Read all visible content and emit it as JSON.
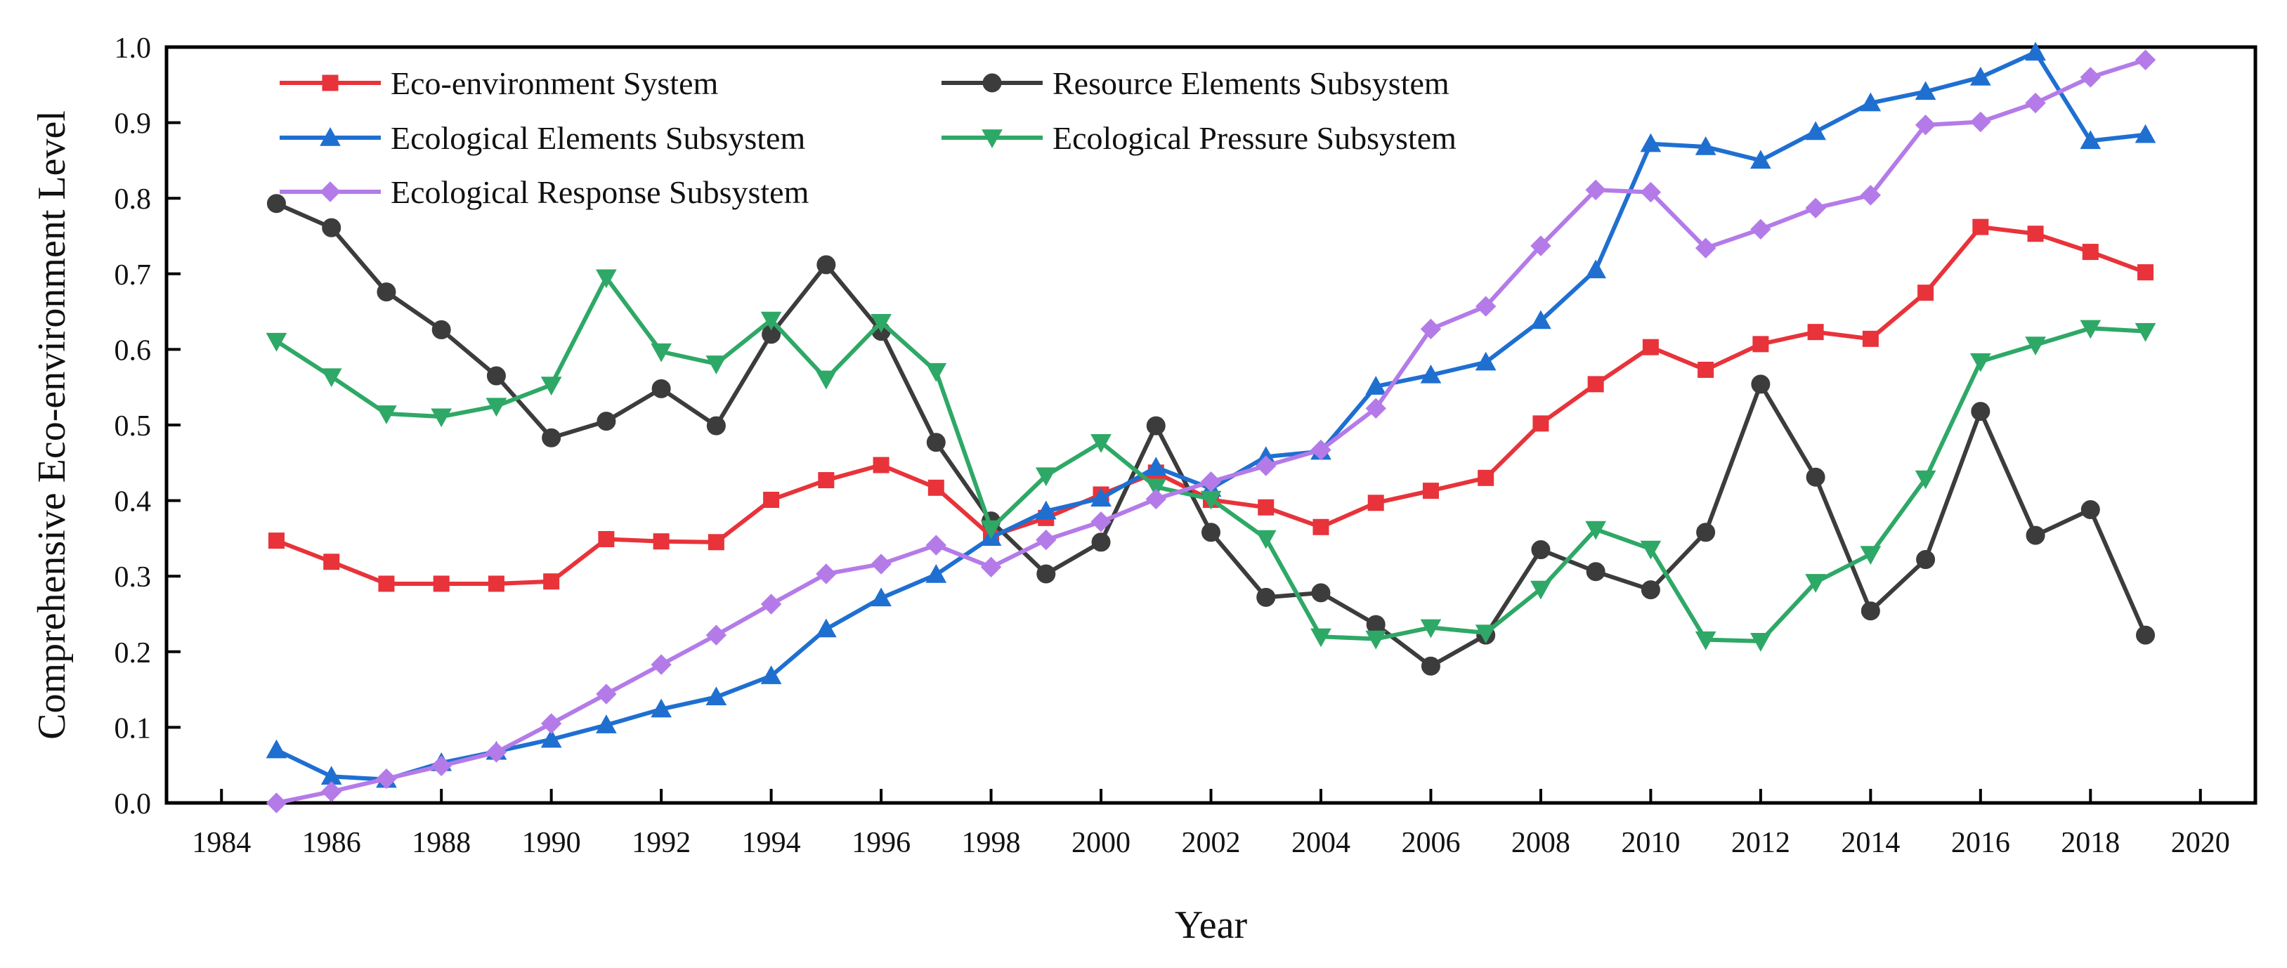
{
  "chart_data": {
    "type": "line",
    "title": "",
    "xlabel": "Year",
    "ylabel": "Comprehensive Eco-environment Level",
    "xlim": [
      1983,
      2021
    ],
    "ylim": [
      0,
      1.0
    ],
    "x_ticks": [
      1984,
      1986,
      1988,
      1990,
      1992,
      1994,
      1996,
      1998,
      2000,
      2002,
      2004,
      2006,
      2008,
      2010,
      2012,
      2014,
      2016,
      2018,
      2020
    ],
    "y_ticks": [
      0.0,
      0.1,
      0.2,
      0.3,
      0.4,
      0.5,
      0.6,
      0.7,
      0.8,
      0.9,
      1.0
    ],
    "y_tick_labels": [
      "0.0",
      "0.1",
      "0.2",
      "0.3",
      "0.4",
      "0.5",
      "0.6",
      "0.7",
      "0.8",
      "0.9",
      "1.0"
    ],
    "legend_position": "top-left",
    "x": [
      1985,
      1986,
      1987,
      1988,
      1989,
      1990,
      1991,
      1992,
      1993,
      1994,
      1995,
      1996,
      1997,
      1998,
      1999,
      2000,
      2001,
      2002,
      2003,
      2004,
      2005,
      2006,
      2007,
      2008,
      2009,
      2010,
      2011,
      2012,
      2013,
      2014,
      2015,
      2016,
      2017,
      2018,
      2019
    ],
    "series": [
      {
        "name": "Eco-environment System",
        "color": "#e8333a",
        "marker": "square",
        "values": [
          0.347,
          0.319,
          0.29,
          0.29,
          0.29,
          0.293,
          0.349,
          0.346,
          0.345,
          0.401,
          0.427,
          0.447,
          0.417,
          0.353,
          0.377,
          0.408,
          0.437,
          0.401,
          0.391,
          0.365,
          0.397,
          0.413,
          0.43,
          0.502,
          0.554,
          0.603,
          0.573,
          0.607,
          0.623,
          0.614,
          0.675,
          0.762,
          0.753,
          0.729,
          0.702
        ]
      },
      {
        "name": "Resource Elements Subsystem",
        "color": "#3c3c3c",
        "marker": "circle",
        "values": [
          0.793,
          0.761,
          0.676,
          0.626,
          0.565,
          0.483,
          0.505,
          0.548,
          0.499,
          0.62,
          0.712,
          0.624,
          0.477,
          0.373,
          0.303,
          0.345,
          0.499,
          0.358,
          0.272,
          0.278,
          0.236,
          0.181,
          0.222,
          0.335,
          0.306,
          0.282,
          0.358,
          0.554,
          0.431,
          0.254,
          0.322,
          0.518,
          0.354,
          0.388,
          0.222
        ]
      },
      {
        "name": "Ecological Elements Subsystem",
        "color": "#1f6fd1",
        "marker": "triangle-up",
        "values": [
          0.07,
          0.035,
          0.031,
          0.053,
          0.068,
          0.084,
          0.103,
          0.124,
          0.14,
          0.168,
          0.23,
          0.271,
          0.302,
          0.351,
          0.386,
          0.403,
          0.444,
          0.416,
          0.458,
          0.465,
          0.551,
          0.566,
          0.583,
          0.638,
          0.705,
          0.872,
          0.868,
          0.85,
          0.888,
          0.926,
          0.941,
          0.96,
          0.993,
          0.876,
          0.884
        ]
      },
      {
        "name": "Ecological Pressure Subsystem",
        "color": "#2ea866",
        "marker": "triangle-down",
        "values": [
          0.611,
          0.564,
          0.515,
          0.511,
          0.525,
          0.553,
          0.695,
          0.597,
          0.581,
          0.639,
          0.561,
          0.636,
          0.571,
          0.363,
          0.433,
          0.477,
          0.418,
          0.402,
          0.35,
          0.22,
          0.217,
          0.232,
          0.225,
          0.283,
          0.362,
          0.336,
          0.216,
          0.214,
          0.292,
          0.329,
          0.429,
          0.584,
          0.606,
          0.628,
          0.624
        ]
      },
      {
        "name": "Ecological Response Subsystem",
        "color": "#b47be8",
        "marker": "diamond",
        "values": [
          0.0,
          0.015,
          0.032,
          0.049,
          0.067,
          0.105,
          0.144,
          0.183,
          0.222,
          0.263,
          0.303,
          0.316,
          0.341,
          0.312,
          0.348,
          0.372,
          0.402,
          0.425,
          0.446,
          0.467,
          0.522,
          0.627,
          0.657,
          0.737,
          0.811,
          0.808,
          0.734,
          0.759,
          0.787,
          0.804,
          0.897,
          0.901,
          0.926,
          0.96,
          0.983
        ]
      }
    ]
  }
}
